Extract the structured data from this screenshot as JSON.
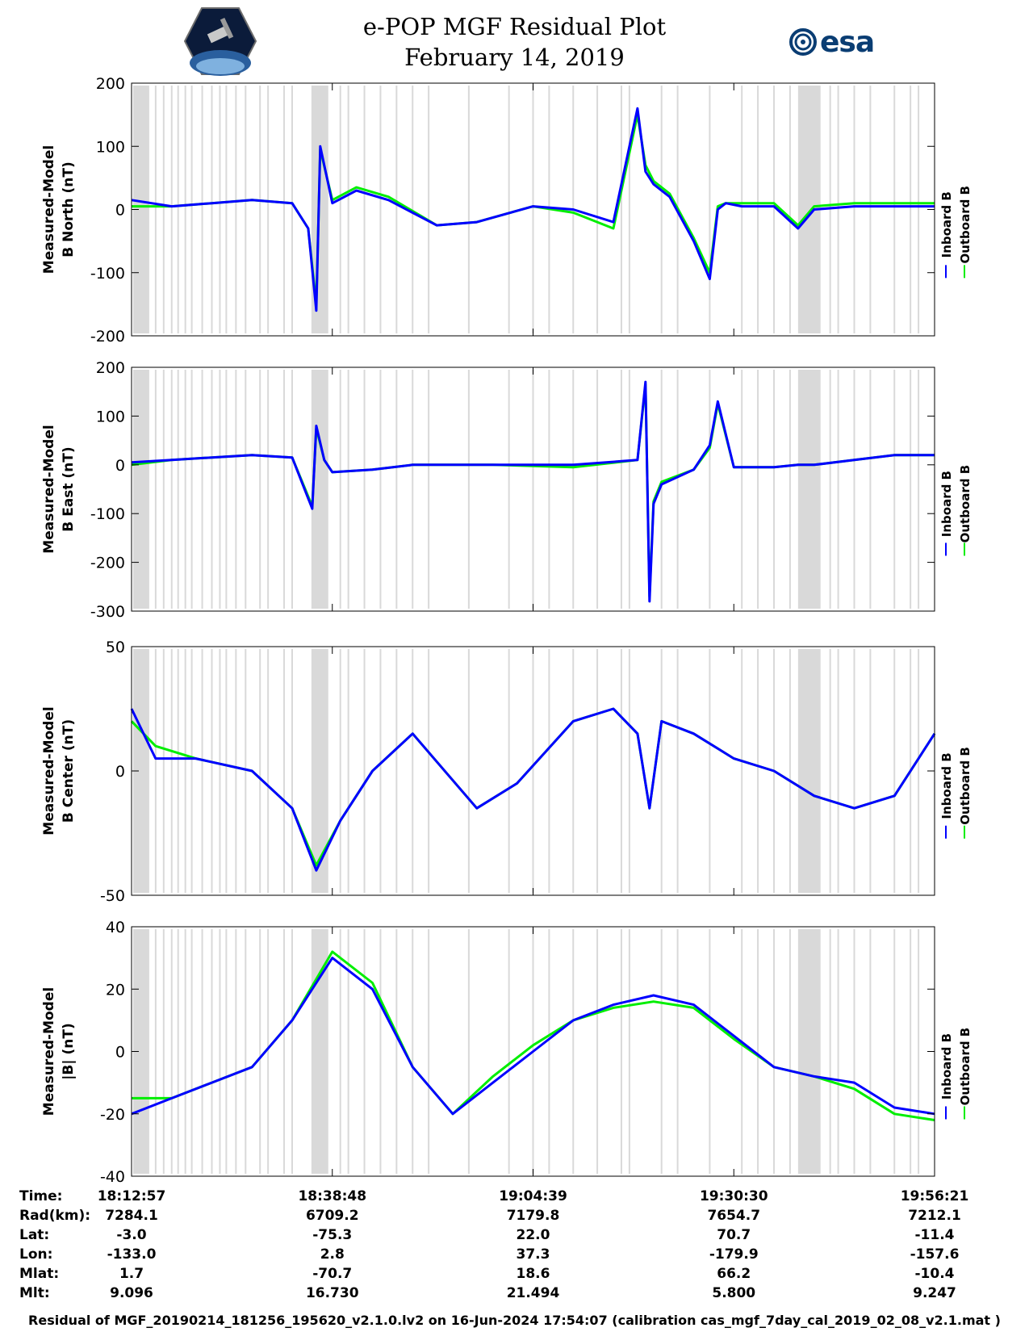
{
  "header": {
    "title_line1": "e-POP MGF Residual Plot",
    "title_line2": "February 14, 2019",
    "logo_left": "cassiope-logo",
    "logo_right_text": "esa"
  },
  "colors": {
    "inboard": "#0000ff",
    "outboard": "#00ee00",
    "gap_shading": "#d9d9d9"
  },
  "chart_data": [
    {
      "type": "line",
      "ylabel": "Measured-Model\nB North (nT)",
      "ylim": [
        -200,
        200
      ],
      "yticks": [
        -200,
        -100,
        0,
        100,
        200
      ],
      "series": [
        {
          "name": "Inboard B",
          "x": [
            0,
            0.05,
            0.1,
            0.15,
            0.2,
            0.22,
            0.23,
            0.235,
            0.25,
            0.28,
            0.32,
            0.38,
            0.43,
            0.5,
            0.55,
            0.6,
            0.63,
            0.64,
            0.65,
            0.67,
            0.7,
            0.72,
            0.73,
            0.74,
            0.76,
            0.8,
            0.83,
            0.85,
            0.9,
            0.95,
            1.0
          ],
          "values": [
            15,
            5,
            10,
            15,
            10,
            -30,
            -160,
            100,
            10,
            30,
            15,
            -25,
            -20,
            5,
            0,
            -20,
            160,
            60,
            40,
            20,
            -50,
            -110,
            0,
            10,
            5,
            5,
            -30,
            0,
            5,
            5,
            5
          ]
        },
        {
          "name": "Outboard B",
          "x": [
            0,
            0.05,
            0.1,
            0.15,
            0.2,
            0.22,
            0.23,
            0.235,
            0.25,
            0.28,
            0.32,
            0.38,
            0.43,
            0.5,
            0.55,
            0.6,
            0.63,
            0.64,
            0.65,
            0.67,
            0.7,
            0.72,
            0.73,
            0.74,
            0.76,
            0.8,
            0.83,
            0.85,
            0.9,
            0.95,
            1.0
          ],
          "values": [
            5,
            5,
            10,
            15,
            10,
            -30,
            -150,
            95,
            15,
            35,
            20,
            -25,
            -20,
            5,
            -5,
            -30,
            150,
            70,
            45,
            25,
            -45,
            -100,
            5,
            10,
            10,
            10,
            -25,
            5,
            10,
            10,
            10
          ]
        }
      ]
    },
    {
      "type": "line",
      "ylabel": "Measured-Model\nB East (nT)",
      "ylim": [
        -300,
        200
      ],
      "yticks": [
        -300,
        -200,
        -100,
        0,
        100,
        200
      ],
      "series": [
        {
          "name": "Inboard B",
          "x": [
            0,
            0.05,
            0.1,
            0.15,
            0.2,
            0.225,
            0.23,
            0.24,
            0.25,
            0.3,
            0.35,
            0.45,
            0.55,
            0.63,
            0.64,
            0.645,
            0.65,
            0.66,
            0.7,
            0.72,
            0.73,
            0.75,
            0.8,
            0.83,
            0.85,
            0.9,
            0.95,
            1.0
          ],
          "values": [
            5,
            10,
            15,
            20,
            15,
            -90,
            80,
            10,
            -15,
            -10,
            0,
            0,
            0,
            10,
            170,
            -280,
            -80,
            -40,
            -10,
            40,
            130,
            -5,
            -5,
            0,
            0,
            10,
            20,
            20
          ]
        },
        {
          "name": "Outboard B",
          "x": [
            0,
            0.05,
            0.1,
            0.15,
            0.2,
            0.225,
            0.23,
            0.24,
            0.25,
            0.3,
            0.35,
            0.45,
            0.55,
            0.63,
            0.64,
            0.645,
            0.65,
            0.66,
            0.7,
            0.72,
            0.73,
            0.75,
            0.8,
            0.83,
            0.85,
            0.9,
            0.95,
            1.0
          ],
          "values": [
            0,
            10,
            15,
            20,
            15,
            -85,
            75,
            10,
            -15,
            -10,
            0,
            0,
            -5,
            10,
            165,
            -270,
            -75,
            -35,
            -10,
            35,
            125,
            -5,
            -5,
            0,
            0,
            10,
            20,
            20
          ]
        }
      ]
    },
    {
      "type": "line",
      "ylabel": "Measured-Model\nB Center (nT)",
      "ylim": [
        -50,
        50
      ],
      "yticks": [
        -50,
        0,
        50
      ],
      "series": [
        {
          "name": "Inboard B",
          "x": [
            0,
            0.03,
            0.08,
            0.15,
            0.2,
            0.23,
            0.26,
            0.3,
            0.35,
            0.43,
            0.48,
            0.55,
            0.6,
            0.63,
            0.645,
            0.66,
            0.7,
            0.75,
            0.8,
            0.85,
            0.9,
            0.95,
            1.0
          ],
          "values": [
            25,
            5,
            5,
            0,
            -15,
            -40,
            -20,
            0,
            15,
            -15,
            -5,
            20,
            25,
            15,
            -15,
            20,
            15,
            5,
            0,
            -10,
            -15,
            -10,
            15
          ]
        },
        {
          "name": "Outboard B",
          "x": [
            0,
            0.03,
            0.08,
            0.15,
            0.2,
            0.23,
            0.26,
            0.3,
            0.35,
            0.43,
            0.48,
            0.55,
            0.6,
            0.63,
            0.645,
            0.66,
            0.7,
            0.75,
            0.8,
            0.85,
            0.9,
            0.95,
            1.0
          ],
          "values": [
            20,
            10,
            5,
            0,
            -15,
            -38,
            -20,
            0,
            15,
            -15,
            -5,
            20,
            25,
            15,
            -15,
            20,
            15,
            5,
            0,
            -10,
            -15,
            -10,
            15
          ]
        }
      ]
    },
    {
      "type": "line",
      "ylabel": "Measured-Model\n|B| (nT)",
      "ylim": [
        -40,
        40
      ],
      "yticks": [
        -40,
        -20,
        0,
        20,
        40
      ],
      "series": [
        {
          "name": "Inboard B",
          "x": [
            0,
            0.05,
            0.1,
            0.15,
            0.2,
            0.25,
            0.3,
            0.35,
            0.4,
            0.45,
            0.5,
            0.55,
            0.6,
            0.65,
            0.7,
            0.75,
            0.8,
            0.85,
            0.9,
            0.95,
            1.0
          ],
          "values": [
            -20,
            -15,
            -10,
            -5,
            10,
            30,
            20,
            -5,
            -20,
            -10,
            0,
            10,
            15,
            18,
            15,
            5,
            -5,
            -8,
            -10,
            -18,
            -20
          ]
        },
        {
          "name": "Outboard B",
          "x": [
            0,
            0.05,
            0.1,
            0.15,
            0.2,
            0.25,
            0.3,
            0.35,
            0.4,
            0.45,
            0.5,
            0.55,
            0.6,
            0.65,
            0.7,
            0.75,
            0.8,
            0.85,
            0.9,
            0.95,
            1.0
          ],
          "values": [
            -15,
            -15,
            -10,
            -5,
            10,
            32,
            22,
            -5,
            -20,
            -8,
            2,
            10,
            14,
            16,
            14,
            4,
            -5,
            -8,
            -12,
            -20,
            -22
          ]
        }
      ]
    }
  ],
  "legend": {
    "inboard": "Inboard B",
    "outboard": "Outboard B"
  },
  "info_table": {
    "labels": [
      "Time:",
      "Rad(km):",
      "Lat:",
      "Lon:",
      "Mlat:",
      "Mlt:"
    ],
    "columns": [
      [
        "18:12:57",
        "7284.1",
        "-3.0",
        "-133.0",
        "1.7",
        "9.096"
      ],
      [
        "18:38:48",
        "6709.2",
        "-75.3",
        "2.8",
        "-70.7",
        "16.730"
      ],
      [
        "19:04:39",
        "7179.8",
        "22.0",
        "37.3",
        "18.6",
        "21.494"
      ],
      [
        "19:30:30",
        "7654.7",
        "70.7",
        "-179.9",
        "66.2",
        "5.800"
      ],
      [
        "19:56:21",
        "7212.1",
        "-11.4",
        "-157.6",
        "-10.4",
        "9.247"
      ]
    ]
  },
  "footer": "Residual of MGF_20190214_181256_195620_v2.1.0.lv2 on 16-Jun-2024 17:54:07 (calibration cas_mgf_7day_cal_2019_02_08_v2.1.mat )"
}
